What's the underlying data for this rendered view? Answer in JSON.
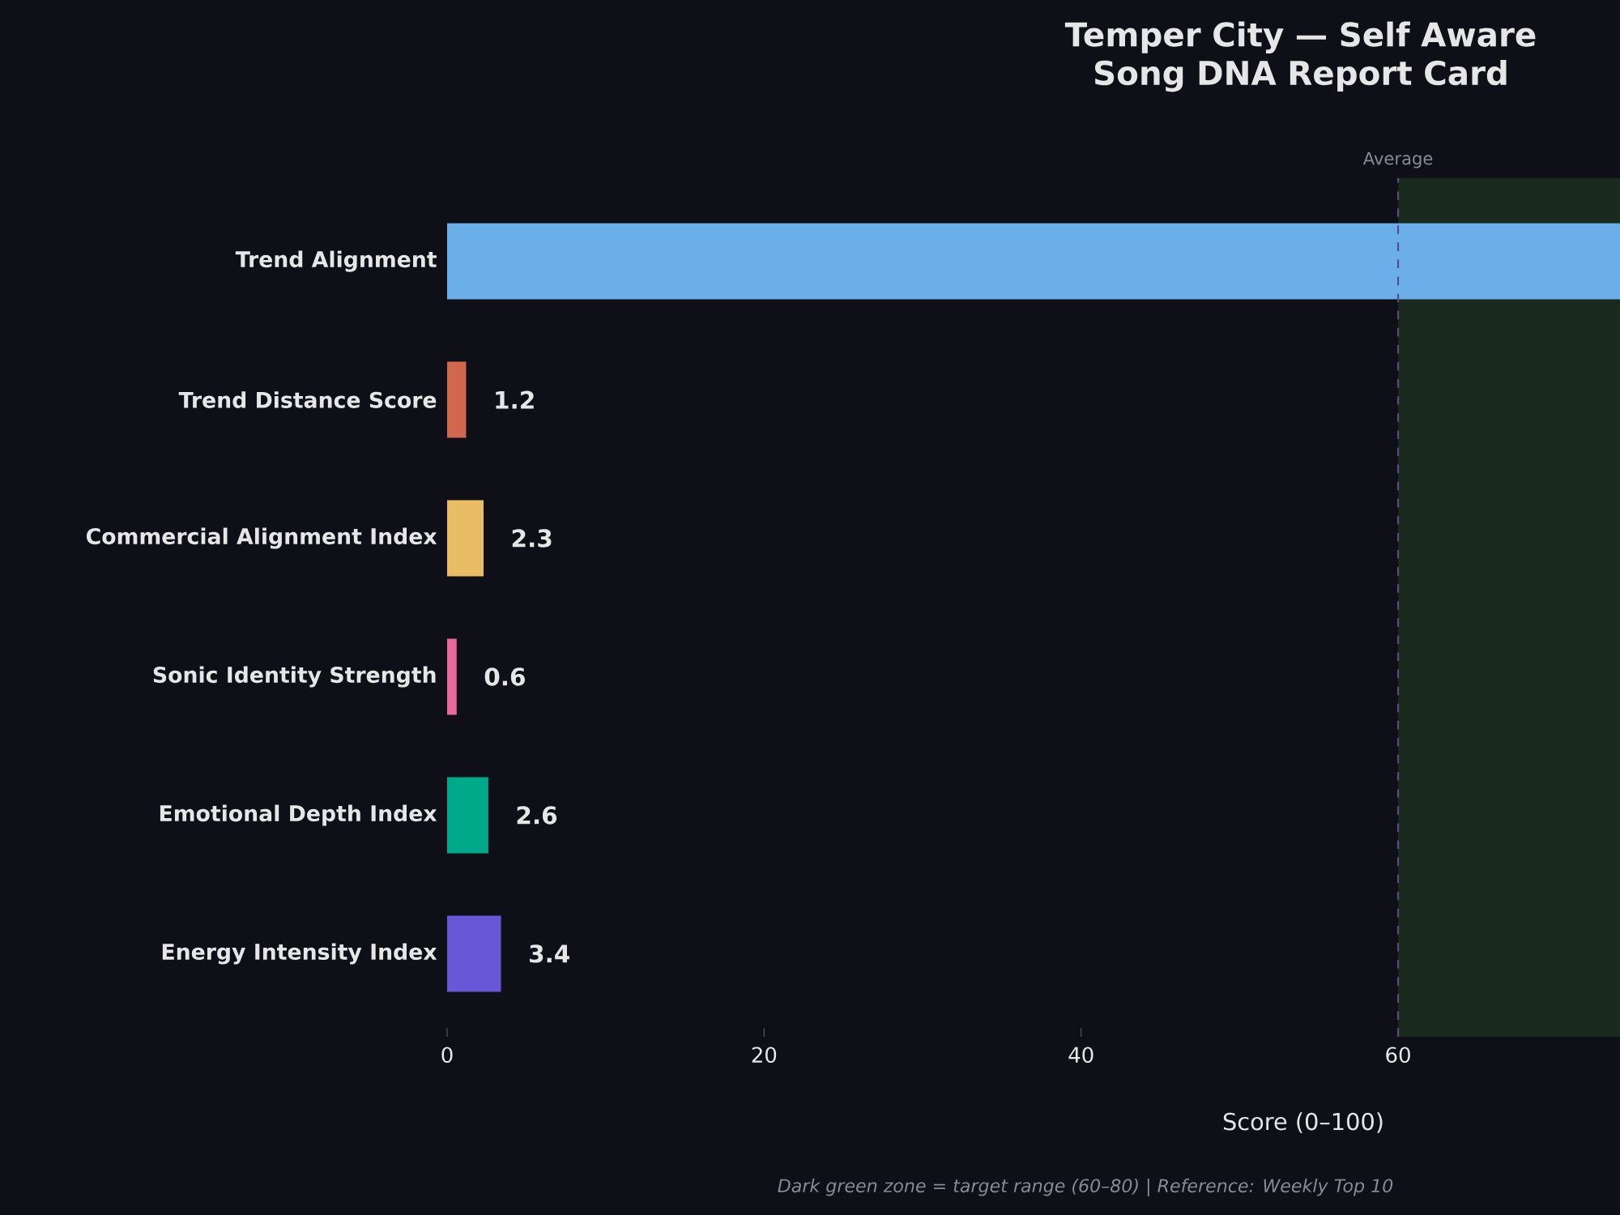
{
  "chart_data": {
    "type": "bar",
    "orientation": "horizontal",
    "title": "Temper City — Self Aware Song DNA Report Card",
    "categories": [
      "Trend Alignment",
      "Trend Distance Score",
      "Commercial Alignment Index",
      "Sonic Identity Strength",
      "Emotional Depth Index",
      "Energy Intensity Index"
    ],
    "values": [
      74,
      1.2,
      2.3,
      0.6,
      2.6,
      3.4
    ],
    "colors": [
      "#6aaeea",
      "#d0674f",
      "#e9bd66",
      "#e86a9a",
      "#00a98a",
      "#6a57d8"
    ],
    "value_labels": [
      null,
      "1.2",
      "2.3",
      "0.6",
      "2.6",
      "3.4"
    ],
    "xlim": [
      0,
      74
    ],
    "xticks": [
      0,
      20,
      40,
      60
    ],
    "xlabel": "Score (0–100)",
    "ref_lines": [
      {
        "axis": "x",
        "value": 60,
        "label": "Average",
        "color": "#5a4a8a",
        "line_style": "dashed"
      }
    ],
    "bands": [
      {
        "axis": "x",
        "from": 60,
        "to": 80,
        "color": "#1a2a1f"
      }
    ],
    "annotations": [
      "Dark green zone = target range (60–80) | Reference: Weekly Top 10"
    ]
  }
}
